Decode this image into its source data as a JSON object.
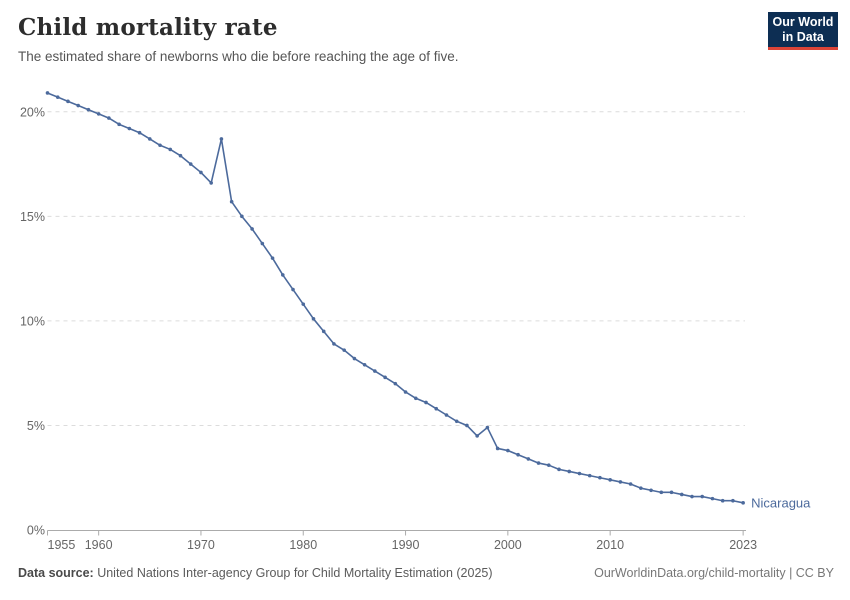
{
  "header": {
    "title": "Child mortality rate",
    "subtitle": "The estimated share of newborns who die before reaching the age of five.",
    "logo": {
      "line1": "Our World",
      "line2": "in Data",
      "bg_color": "#0d2e53",
      "accent_color": "#dc4437"
    }
  },
  "chart_data": {
    "type": "line",
    "title": "Child mortality rate",
    "subtitle": "The estimated share of newborns who die before reaching the age of five.",
    "entity_label": "Nicaragua",
    "unit": "%",
    "grid": "dashed-horizontal",
    "legend_position": "end-of-line",
    "xlim": [
      1955,
      2023
    ],
    "ylim": [
      0,
      21.5
    ],
    "x_ticks": [
      {
        "value": 1955,
        "label": "1955",
        "align": "start"
      },
      {
        "value": 1960,
        "label": "1960"
      },
      {
        "value": 1970,
        "label": "1970"
      },
      {
        "value": 1980,
        "label": "1980"
      },
      {
        "value": 1990,
        "label": "1990"
      },
      {
        "value": 2000,
        "label": "2000"
      },
      {
        "value": 2010,
        "label": "2010"
      },
      {
        "value": 2023,
        "label": "2023"
      }
    ],
    "y_ticks": [
      {
        "value": 0,
        "label": "0%"
      },
      {
        "value": 5,
        "label": "5%"
      },
      {
        "value": 10,
        "label": "10%"
      },
      {
        "value": 15,
        "label": "15%"
      },
      {
        "value": 20,
        "label": "20%"
      }
    ],
    "x": [
      1955,
      1956,
      1957,
      1958,
      1959,
      1960,
      1961,
      1962,
      1963,
      1964,
      1965,
      1966,
      1967,
      1968,
      1969,
      1970,
      1971,
      1972,
      1973,
      1974,
      1975,
      1976,
      1977,
      1978,
      1979,
      1980,
      1981,
      1982,
      1983,
      1984,
      1985,
      1986,
      1987,
      1988,
      1989,
      1990,
      1991,
      1992,
      1993,
      1994,
      1995,
      1996,
      1997,
      1998,
      1999,
      2000,
      2001,
      2002,
      2003,
      2004,
      2005,
      2006,
      2007,
      2008,
      2009,
      2010,
      2011,
      2012,
      2013,
      2014,
      2015,
      2016,
      2017,
      2018,
      2019,
      2020,
      2021,
      2022,
      2023
    ],
    "series": [
      {
        "name": "Nicaragua",
        "color": "#4C6A9C",
        "values": [
          20.9,
          20.7,
          20.5,
          20.3,
          20.1,
          19.9,
          19.7,
          19.4,
          19.2,
          19.0,
          18.7,
          18.4,
          18.2,
          17.9,
          17.5,
          17.1,
          16.6,
          18.7,
          15.7,
          15.0,
          14.4,
          13.7,
          13.0,
          12.2,
          11.5,
          10.8,
          10.1,
          9.5,
          8.9,
          8.6,
          8.2,
          7.9,
          7.6,
          7.3,
          7.0,
          6.6,
          6.3,
          6.1,
          5.8,
          5.5,
          5.2,
          5.0,
          4.5,
          4.9,
          3.9,
          3.8,
          3.6,
          3.4,
          3.2,
          3.1,
          2.9,
          2.8,
          2.7,
          2.6,
          2.5,
          2.4,
          2.3,
          2.2,
          2.0,
          1.9,
          1.8,
          1.8,
          1.7,
          1.6,
          1.6,
          1.5,
          1.4,
          1.4,
          1.3
        ]
      }
    ]
  },
  "footer": {
    "datasource_label": "Data source:",
    "datasource_text": " United Nations Inter-agency Group for Child Mortality Estimation (2025)",
    "credit": "OurWorldinData.org/child-mortality | CC BY"
  }
}
